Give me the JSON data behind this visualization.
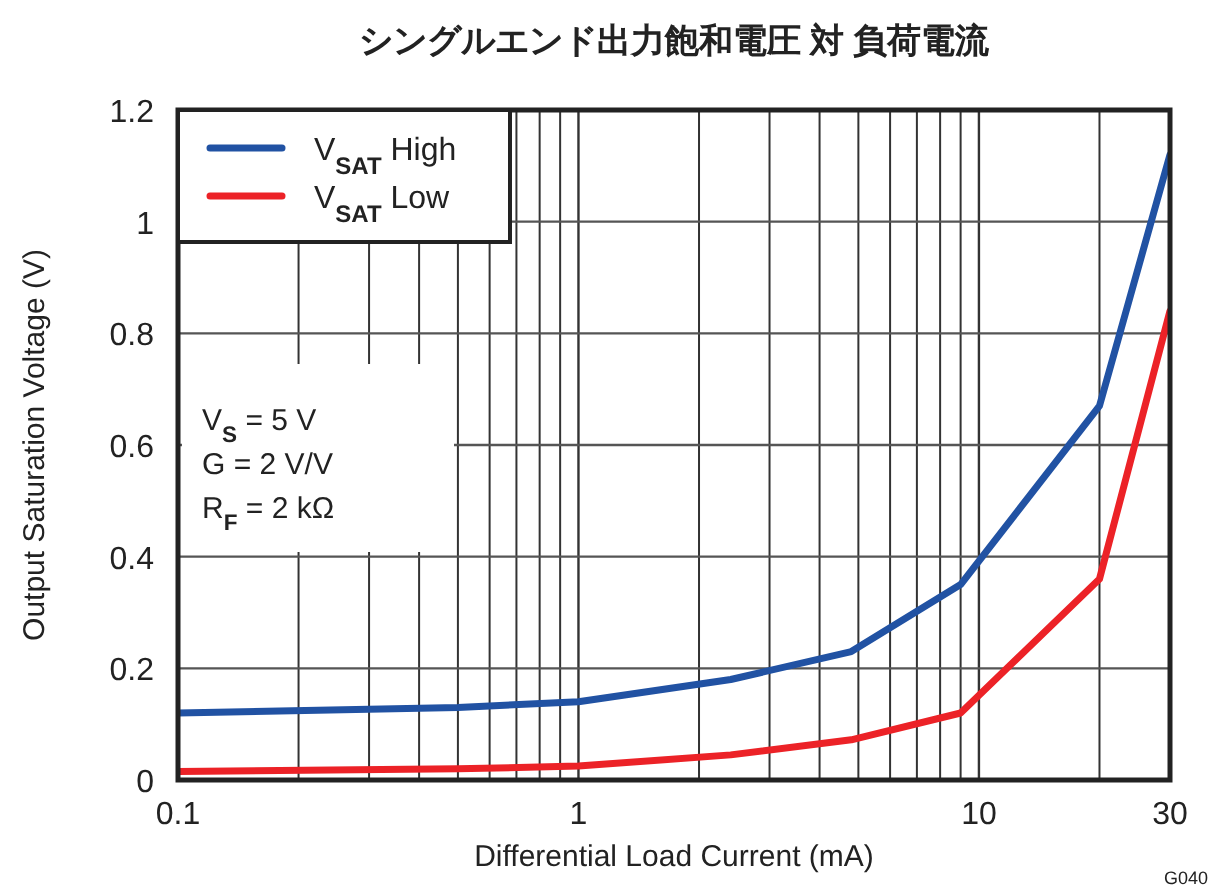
{
  "chart_data": {
    "type": "line",
    "title": "シングルエンド出力飽和電圧 対 負荷電流",
    "xlabel": "Differential Load Current (mA)",
    "ylabel": "Output Saturation Voltage (V)",
    "x": [
      0.1,
      0.5,
      1,
      2.4,
      4.8,
      9,
      20,
      30
    ],
    "series": [
      {
        "name": "V$_{SAT}$ High",
        "color": "#2152a3",
        "values": [
          0.12,
          0.13,
          0.14,
          0.18,
          0.23,
          0.35,
          0.67,
          1.12
        ]
      },
      {
        "name": "V$_{SAT}$ Low",
        "color": "#ec2227",
        "values": [
          0.015,
          0.02,
          0.025,
          0.045,
          0.072,
          0.12,
          0.36,
          0.84
        ]
      }
    ],
    "log": "x",
    "xlim": [
      0.1,
      30
    ],
    "ylim": [
      0,
      1.2
    ],
    "xticks": [
      0.1,
      {
        "value": 0.2,
        "label": null
      },
      {
        "value": 0.3,
        "label": null
      },
      {
        "value": 0.4,
        "label": null
      },
      {
        "value": 0.5,
        "label": null
      },
      {
        "value": 0.6,
        "label": null
      },
      {
        "value": 0.7,
        "label": null
      },
      {
        "value": 0.8,
        "label": null
      },
      {
        "value": 0.9,
        "label": null
      },
      1,
      {
        "value": 2,
        "label": null
      },
      {
        "value": 3,
        "label": null
      },
      {
        "value": 4,
        "label": null
      },
      {
        "value": 5,
        "label": null
      },
      {
        "value": 6,
        "label": null
      },
      {
        "value": 7,
        "label": null
      },
      {
        "value": 8,
        "label": null
      },
      {
        "value": 9,
        "label": null
      },
      10,
      {
        "value": 20,
        "label": null
      },
      30
    ],
    "yticks": [
      0,
      0.2,
      0.4,
      0.6,
      0.8,
      1,
      1.2
    ],
    "grid": true,
    "legend": "top left",
    "annotations": [
      "V$_{S}$ = 5 V",
      "G = 2 V/V",
      "R$_{F}$ = 2 kΩ",
      "G040"
    ]
  }
}
